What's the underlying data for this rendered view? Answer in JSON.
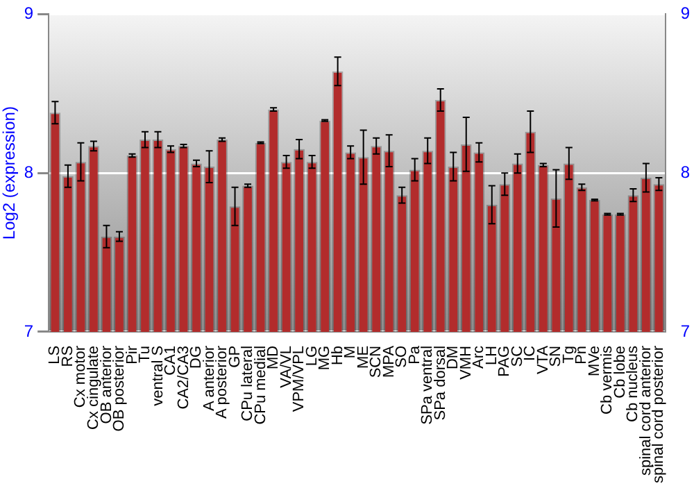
{
  "chart_data": {
    "type": "bar",
    "ylabel": "Log2 (expression)",
    "categories": [
      "LS",
      "RS",
      "Cx motor",
      "Cx cingulate",
      "OB anterior",
      "OB posterior",
      "Pir",
      "Tu",
      "ventral S",
      "CA1",
      "CA2/CA3",
      "DG",
      "A anterior",
      "A posterior",
      "GP",
      "CPu lateral",
      "CPu medial",
      "MD",
      "VA/VL",
      "VPM/VPL",
      "LG",
      "MG",
      "Hb",
      "M",
      "ME",
      "SCN",
      "MPA",
      "SO",
      "Pa",
      "SPa ventral",
      "SPa dorsal",
      "DM",
      "VMH",
      "Arc",
      "LH",
      "PAG",
      "SC",
      "IC",
      "VTA",
      "SN",
      "Tg",
      "Pn",
      "MVe",
      "Cb vermis",
      "Cb lobe",
      "Cb nucleus",
      "spinal cord anterior",
      "spinal cord posterior"
    ],
    "values": [
      8.38,
      7.98,
      8.07,
      8.17,
      7.6,
      7.6,
      8.11,
      8.21,
      8.21,
      8.15,
      8.17,
      8.06,
      8.04,
      8.21,
      7.79,
      7.92,
      8.19,
      8.4,
      8.07,
      8.15,
      8.07,
      8.33,
      8.64,
      8.13,
      8.1,
      8.17,
      8.14,
      7.86,
      8.02,
      8.14,
      8.46,
      8.04,
      8.18,
      8.13,
      7.8,
      7.93,
      8.06,
      8.26,
      8.05,
      7.84,
      8.06,
      7.91,
      7.83,
      7.74,
      7.74,
      7.86,
      7.97,
      7.93
    ],
    "errors": [
      0.07,
      0.07,
      0.12,
      0.03,
      0.07,
      0.03,
      0.01,
      0.05,
      0.05,
      0.02,
      0.01,
      0.02,
      0.1,
      0.01,
      0.12,
      0.01,
      0.005,
      0.01,
      0.04,
      0.06,
      0.04,
      0.005,
      0.09,
      0.04,
      0.17,
      0.05,
      0.1,
      0.05,
      0.07,
      0.08,
      0.07,
      0.09,
      0.17,
      0.06,
      0.12,
      0.07,
      0.06,
      0.13,
      0.01,
      0.18,
      0.1,
      0.02,
      0.005,
      0.005,
      0.005,
      0.04,
      0.09,
      0.04
    ],
    "color": "#b22c2c",
    "ylim": [
      7,
      9
    ],
    "yticks": [
      7,
      8,
      9
    ],
    "y2lim": [
      7,
      9
    ],
    "y2ticks": [
      7,
      8,
      9
    ],
    "grid": "y",
    "legend": false
  }
}
